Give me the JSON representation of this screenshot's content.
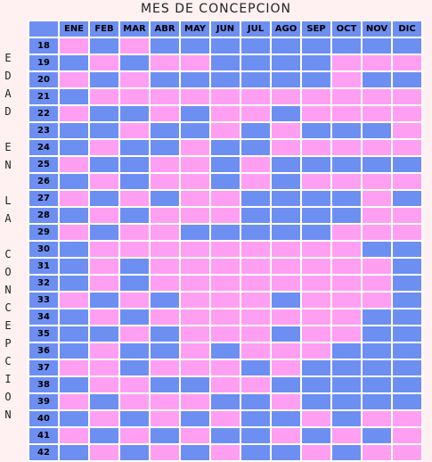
{
  "title": "MES DE CONCEPCION",
  "side_label": [
    "E",
    "D",
    "A",
    "D",
    "",
    "E",
    "N",
    "",
    "L",
    "A",
    "",
    "C",
    "O",
    "N",
    "C",
    "E",
    "P",
    "C",
    "I",
    "O",
    "N"
  ],
  "colors": {
    "boy": "#6d8ff2",
    "girl": "#ff9ff2",
    "background": "#fff0f2"
  },
  "months": [
    "ENE",
    "FEB",
    "MAR",
    "ABR",
    "MAY",
    "JUN",
    "JUL",
    "AGO",
    "SEP",
    "OCT",
    "NOV",
    "DIC"
  ],
  "rows": [
    {
      "age": "18",
      "cells": [
        "G",
        "B",
        "G",
        "B",
        "B",
        "B",
        "B",
        "B",
        "B",
        "B",
        "B",
        "B"
      ]
    },
    {
      "age": "19",
      "cells": [
        "B",
        "G",
        "B",
        "G",
        "G",
        "B",
        "B",
        "B",
        "B",
        "G",
        "G",
        "G"
      ]
    },
    {
      "age": "20",
      "cells": [
        "G",
        "B",
        "G",
        "B",
        "B",
        "B",
        "B",
        "B",
        "B",
        "G",
        "B",
        "B"
      ]
    },
    {
      "age": "21",
      "cells": [
        "B",
        "G",
        "G",
        "G",
        "G",
        "G",
        "G",
        "G",
        "G",
        "G",
        "G",
        "G"
      ]
    },
    {
      "age": "22",
      "cells": [
        "G",
        "B",
        "B",
        "G",
        "B",
        "G",
        "G",
        "B",
        "G",
        "G",
        "G",
        "G"
      ]
    },
    {
      "age": "23",
      "cells": [
        "B",
        "B",
        "G",
        "B",
        "B",
        "G",
        "B",
        "G",
        "B",
        "B",
        "B",
        "G"
      ]
    },
    {
      "age": "24",
      "cells": [
        "B",
        "G",
        "B",
        "B",
        "G",
        "B",
        "B",
        "G",
        "G",
        "G",
        "G",
        "G"
      ]
    },
    {
      "age": "25",
      "cells": [
        "G",
        "B",
        "B",
        "G",
        "G",
        "B",
        "G",
        "B",
        "B",
        "B",
        "B",
        "B"
      ]
    },
    {
      "age": "26",
      "cells": [
        "B",
        "G",
        "B",
        "G",
        "G",
        "B",
        "G",
        "B",
        "G",
        "G",
        "G",
        "G"
      ]
    },
    {
      "age": "27",
      "cells": [
        "G",
        "B",
        "G",
        "B",
        "G",
        "G",
        "B",
        "B",
        "B",
        "B",
        "G",
        "B"
      ]
    },
    {
      "age": "28",
      "cells": [
        "B",
        "G",
        "B",
        "G",
        "G",
        "G",
        "B",
        "B",
        "B",
        "B",
        "G",
        "G"
      ]
    },
    {
      "age": "29",
      "cells": [
        "G",
        "B",
        "G",
        "G",
        "B",
        "B",
        "B",
        "B",
        "B",
        "G",
        "G",
        "G"
      ]
    },
    {
      "age": "30",
      "cells": [
        "B",
        "G",
        "G",
        "G",
        "G",
        "G",
        "G",
        "G",
        "G",
        "G",
        "B",
        "B"
      ]
    },
    {
      "age": "31",
      "cells": [
        "B",
        "G",
        "B",
        "G",
        "G",
        "G",
        "G",
        "G",
        "G",
        "G",
        "G",
        "B"
      ]
    },
    {
      "age": "32",
      "cells": [
        "B",
        "G",
        "B",
        "G",
        "G",
        "G",
        "G",
        "G",
        "G",
        "G",
        "G",
        "B"
      ]
    },
    {
      "age": "33",
      "cells": [
        "G",
        "B",
        "G",
        "B",
        "G",
        "G",
        "G",
        "B",
        "G",
        "G",
        "G",
        "B"
      ]
    },
    {
      "age": "34",
      "cells": [
        "B",
        "G",
        "B",
        "G",
        "G",
        "G",
        "G",
        "G",
        "G",
        "G",
        "B",
        "B"
      ]
    },
    {
      "age": "35",
      "cells": [
        "B",
        "B",
        "G",
        "B",
        "G",
        "G",
        "G",
        "B",
        "G",
        "G",
        "B",
        "B"
      ]
    },
    {
      "age": "36",
      "cells": [
        "B",
        "G",
        "B",
        "B",
        "G",
        "B",
        "G",
        "G",
        "G",
        "B",
        "B",
        "B"
      ]
    },
    {
      "age": "37",
      "cells": [
        "G",
        "G",
        "B",
        "G",
        "G",
        "G",
        "B",
        "G",
        "B",
        "B",
        "B",
        "B"
      ]
    },
    {
      "age": "38",
      "cells": [
        "B",
        "G",
        "G",
        "B",
        "B",
        "G",
        "G",
        "B",
        "B",
        "B",
        "B",
        "B"
      ]
    },
    {
      "age": "39",
      "cells": [
        "G",
        "B",
        "G",
        "G",
        "G",
        "B",
        "B",
        "G",
        "B",
        "B",
        "B",
        "B"
      ]
    },
    {
      "age": "40",
      "cells": [
        "B",
        "G",
        "B",
        "G",
        "B",
        "G",
        "B",
        "B",
        "G",
        "B",
        "G",
        "G"
      ]
    },
    {
      "age": "41",
      "cells": [
        "G",
        "B",
        "G",
        "B",
        "G",
        "B",
        "B",
        "G",
        "B",
        "G",
        "B",
        "G"
      ]
    },
    {
      "age": "42",
      "cells": [
        "B",
        "G",
        "B",
        "G",
        "B",
        "G",
        "B",
        "B",
        "G",
        "B",
        "G",
        "G"
      ]
    }
  ]
}
